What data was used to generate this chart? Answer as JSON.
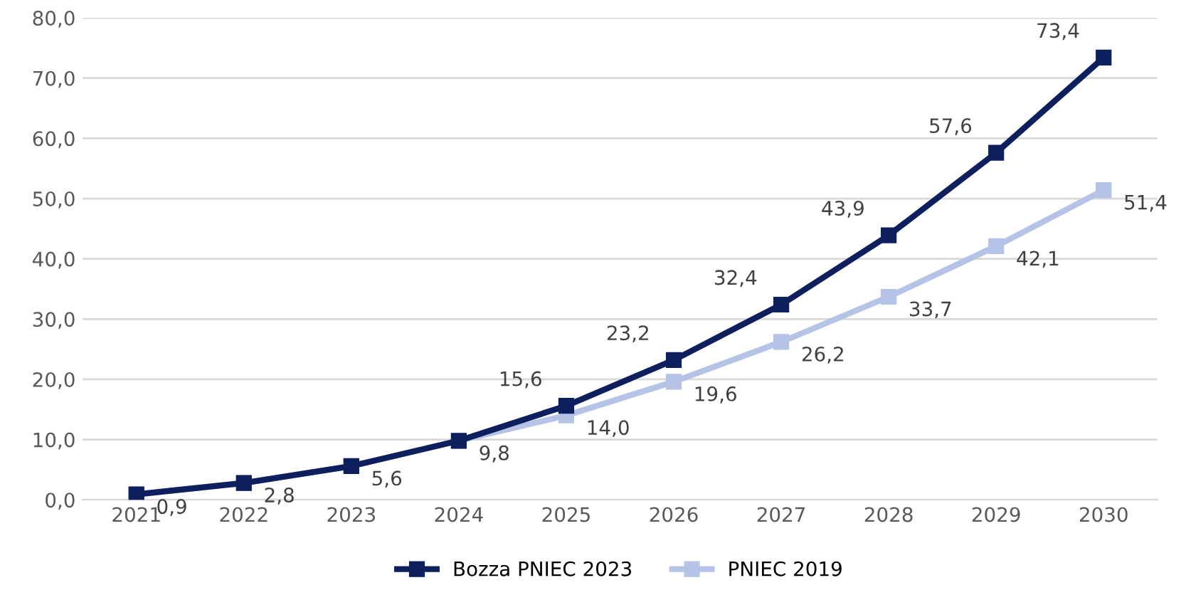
{
  "chart_data": {
    "type": "line",
    "categories": [
      "2021",
      "2022",
      "2023",
      "2024",
      "2025",
      "2026",
      "2027",
      "2028",
      "2029",
      "2030"
    ],
    "series": [
      {
        "name": "Bozza PNIEC 2023",
        "color": "#0d1f5c",
        "values": [
          0.9,
          2.8,
          5.6,
          9.8,
          15.6,
          23.2,
          32.4,
          43.9,
          57.6,
          73.4
        ],
        "value_labels": [
          null,
          null,
          null,
          null,
          "15,6",
          "23,2",
          "32,4",
          "43,9",
          "57,6",
          "73,4"
        ]
      },
      {
        "name": "PNIEC 2019",
        "color": "#b4c3e6",
        "values": [
          0.9,
          2.8,
          5.6,
          9.8,
          14.0,
          19.6,
          26.2,
          33.7,
          42.1,
          51.4
        ],
        "value_labels": [
          "0,9",
          "2,8",
          "5,6",
          "9,8",
          "14,0",
          "19,6",
          "26,2",
          "33,7",
          "42,1",
          "51,4"
        ]
      }
    ],
    "ylim": [
      0,
      80
    ],
    "yticks": [
      {
        "value": 0,
        "label": "0,0"
      },
      {
        "value": 10,
        "label": "10,0"
      },
      {
        "value": 20,
        "label": "20,0"
      },
      {
        "value": 30,
        "label": "30,0"
      },
      {
        "value": 40,
        "label": "40,0"
      },
      {
        "value": 50,
        "label": "50,0"
      },
      {
        "value": 60,
        "label": "60,0"
      },
      {
        "value": 70,
        "label": "70,0"
      },
      {
        "value": 80,
        "label": "80,0"
      }
    ],
    "grid": "y",
    "legend": "bottom",
    "marker": "square",
    "line_style": "solid"
  }
}
